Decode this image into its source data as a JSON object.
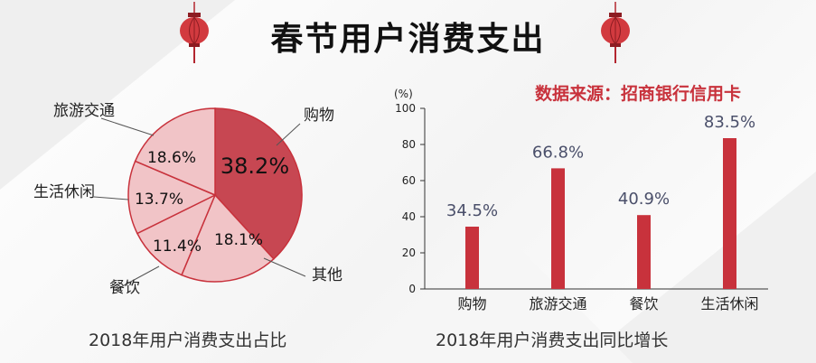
{
  "page": {
    "title": "春节用户消费支出",
    "source": "数据来源：招商银行信用卡"
  },
  "colors": {
    "accent": "#c8323c",
    "pie_highlight": "#c74752",
    "pie_light": "#f1c4c7",
    "pie_stroke": "#c8323c",
    "bar": "#c8323c",
    "bar_label": "#4a4f6a"
  },
  "chart_data": [
    {
      "type": "pie",
      "title": "2018年用户消费支出占比",
      "categories": [
        "购物",
        "其他",
        "餐饮",
        "生活休闲",
        "旅游交通"
      ],
      "values": [
        38.2,
        18.1,
        11.4,
        13.7,
        18.6
      ],
      "value_labels": [
        "38.2%",
        "18.1%",
        "11.4%",
        "13.7%",
        "18.6%"
      ],
      "highlight": "购物"
    },
    {
      "type": "bar",
      "title": "2018年用户消费支出同比增长",
      "categories": [
        "购物",
        "旅游交通",
        "餐饮",
        "生活休闲"
      ],
      "values": [
        34.5,
        66.8,
        40.9,
        83.5
      ],
      "value_labels": [
        "34.5%",
        "66.8%",
        "40.9%",
        "83.5%"
      ],
      "unit_label": "(%)",
      "ylim": [
        0,
        100
      ],
      "yticks": [
        0,
        20,
        40,
        60,
        80,
        100
      ]
    }
  ]
}
